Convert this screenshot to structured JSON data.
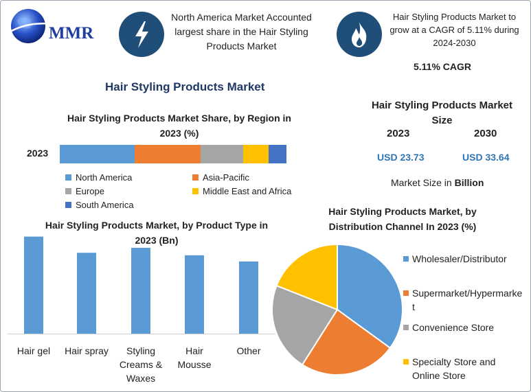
{
  "logo": {
    "text": "MMR"
  },
  "header": {
    "box1_text": "North America Market Accounted largest share in the Hair Styling Products Market",
    "box2_text": "Hair Styling Products Market to grow at a CAGR of 5.11% during 2024-2030",
    "cagr": "5.11% CAGR",
    "icon1": "lightning-icon",
    "icon2": "flame-icon"
  },
  "main_title": "Hair Styling Products Market",
  "market_size": {
    "title": "Hair Styling Products Market Size",
    "year1": "2023",
    "year2": "2030",
    "value1": "USD 23.73",
    "value2": "USD 33.64",
    "note": "Market Size in Billion"
  },
  "colors": {
    "north_america": "#5b9bd5",
    "asia_pacific": "#ed7d31",
    "europe": "#a5a5a5",
    "mea": "#ffc000",
    "south_america": "#4472c4",
    "navy": "#1f3864",
    "accent_blue": "#2e75b6"
  },
  "chart_data": [
    {
      "type": "bar",
      "orientation": "horizontal-stacked",
      "title": "Hair Styling Products Market Share, by Region in 2023 (%)",
      "categories": [
        "2023"
      ],
      "series": [
        {
          "name": "North America",
          "values": [
            33
          ],
          "color": "#5b9bd5"
        },
        {
          "name": "Asia-Pacific",
          "values": [
            29
          ],
          "color": "#ed7d31"
        },
        {
          "name": "Europe",
          "values": [
            19
          ],
          "color": "#a5a5a5"
        },
        {
          "name": "Middle East and Africa",
          "values": [
            11
          ],
          "color": "#ffc000"
        },
        {
          "name": "South America",
          "values": [
            8
          ],
          "color": "#4472c4"
        }
      ],
      "legend_position": "bottom"
    },
    {
      "type": "bar",
      "title": "Hair Styling Products Market, by Product Type in 2023 (Bn)",
      "categories": [
        "Hair gel",
        "Hair spray",
        "Styling Creams & Waxes",
        "Hair Mousse",
        "Other"
      ],
      "values": [
        7.8,
        6.5,
        6.9,
        6.3,
        5.8
      ],
      "ylim": [
        0,
        8
      ],
      "color": "#5b9bd5",
      "grid": false
    },
    {
      "type": "pie",
      "title": "Hair Styling Products Market, by Distribution Channel In 2023 (%)",
      "categories": [
        "Wholesaler/Distributor",
        "Supermarket/Hypermarket",
        "Convenience Store",
        "Specialty Store and Online Store"
      ],
      "values": [
        35,
        24,
        22,
        19
      ],
      "colors": [
        "#5b9bd5",
        "#ed7d31",
        "#a5a5a5",
        "#ffc000"
      ],
      "legend_position": "right"
    }
  ]
}
